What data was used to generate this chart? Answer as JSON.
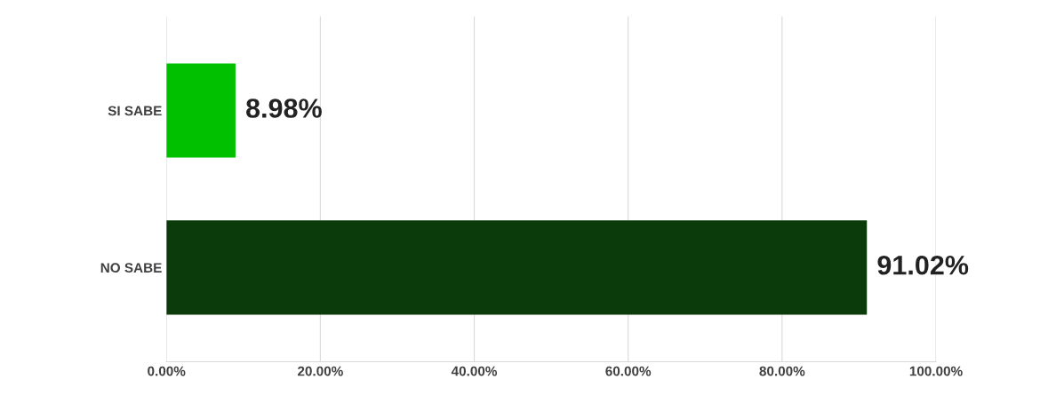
{
  "chart_data": {
    "type": "bar",
    "orientation": "horizontal",
    "categories": [
      "SI SABE",
      "NO SABE"
    ],
    "values": [
      8.98,
      91.02
    ],
    "colors": [
      "#00c000",
      "#0b3b0b"
    ],
    "value_labels": [
      "8.98%",
      "91.02%"
    ],
    "xlim": [
      0,
      100
    ],
    "xticks": [
      {
        "value": 0,
        "label": "0.00%"
      },
      {
        "value": 20,
        "label": "20.00%"
      },
      {
        "value": 40,
        "label": "40.00%"
      },
      {
        "value": 60,
        "label": "60.00%"
      },
      {
        "value": 80,
        "label": "80.00%"
      },
      {
        "value": 100,
        "label": "100.00%"
      }
    ],
    "grid": "x"
  }
}
